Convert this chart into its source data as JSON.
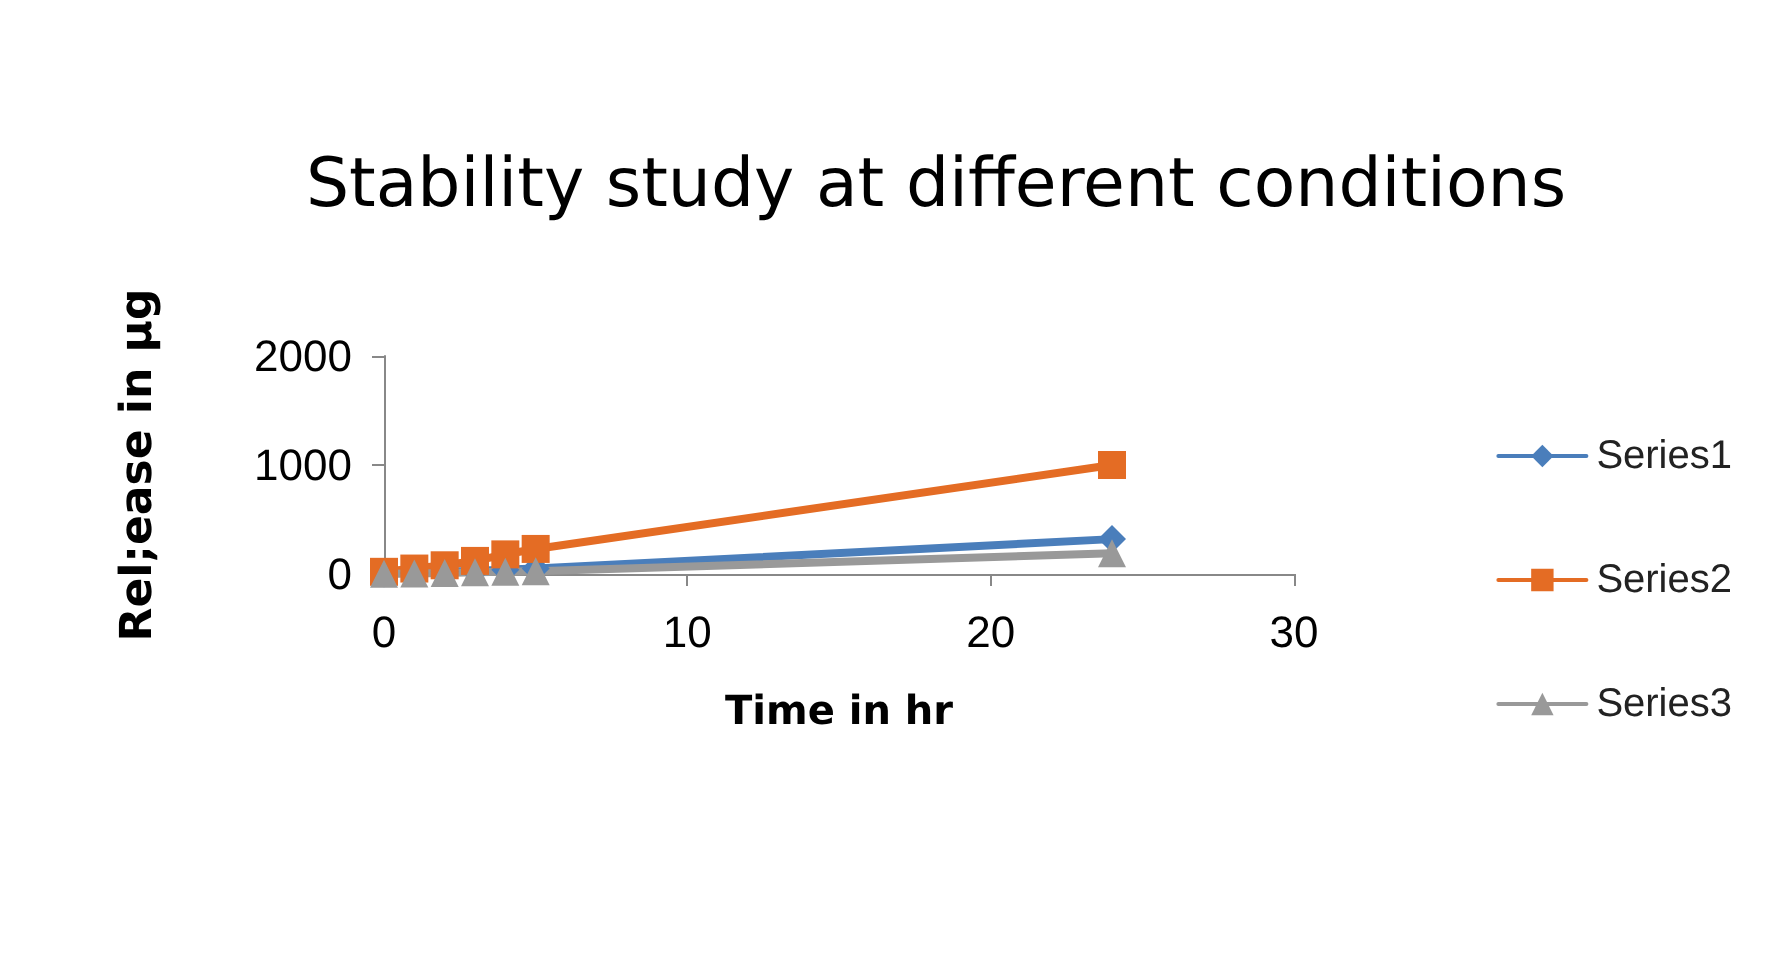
{
  "chart_data": {
    "type": "line",
    "title": "Stability study at different conditions",
    "xlabel": "Time in hr",
    "ylabel": "Rel;ease in µg",
    "x": [
      0,
      1,
      2,
      3,
      4,
      5,
      24
    ],
    "series": [
      {
        "name": "Series1",
        "color": "#4a7ebb",
        "marker": "diamond",
        "values": [
          5,
          10,
          20,
          30,
          40,
          50,
          320
        ]
      },
      {
        "name": "Series2",
        "color": "#e46c24",
        "marker": "square",
        "values": [
          20,
          50,
          80,
          120,
          180,
          230,
          1000
        ]
      },
      {
        "name": "Series3",
        "color": "#999999",
        "marker": "triangle",
        "values": [
          2,
          5,
          10,
          15,
          20,
          25,
          190
        ]
      }
    ],
    "xlim": [
      0,
      30
    ],
    "xticks": [
      0,
      10,
      20,
      30
    ],
    "ylim": [
      0,
      2000
    ],
    "yticks": [
      0,
      1000,
      2000
    ],
    "grid": false,
    "legend": "right",
    "line_style": "solid"
  }
}
